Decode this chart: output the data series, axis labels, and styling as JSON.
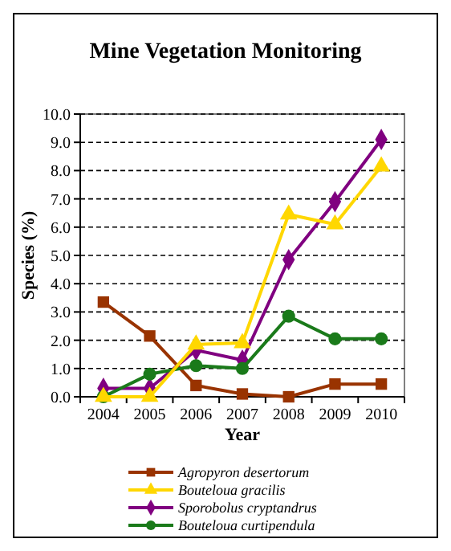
{
  "chart_data": {
    "type": "line",
    "title": "Mine Vegetation Monitoring",
    "xlabel": "Year",
    "ylabel": "Species (%)",
    "categories": [
      "2004",
      "2005",
      "2006",
      "2007",
      "2008",
      "2009",
      "2010"
    ],
    "series": [
      {
        "name": "Agropyron desertorum",
        "color": "#993300",
        "marker": "square",
        "values": [
          3.35,
          2.15,
          0.4,
          0.1,
          0.0,
          0.45,
          0.45
        ]
      },
      {
        "name": "Bouteloua gracilis",
        "color": "#ffd700",
        "marker": "triangle",
        "values": [
          0.0,
          0.0,
          1.85,
          1.9,
          6.45,
          6.1,
          8.15
        ]
      },
      {
        "name": "Sporobolus cryptandrus",
        "color": "#800080",
        "marker": "diamond",
        "values": [
          0.3,
          0.3,
          1.65,
          1.3,
          4.85,
          6.9,
          9.1
        ]
      },
      {
        "name": "Bouteloua curtipendula",
        "color": "#1a7a1a",
        "marker": "circle",
        "values": [
          0.0,
          0.8,
          1.1,
          1.0,
          2.85,
          2.05,
          2.05
        ]
      }
    ],
    "ylim": [
      0,
      10
    ],
    "yticks": [
      {
        "value": 0,
        "label": "0.0"
      },
      {
        "value": 1,
        "label": "1.0"
      },
      {
        "value": 2,
        "label": "2.0"
      },
      {
        "value": 3,
        "label": "3.0"
      },
      {
        "value": 4,
        "label": "4.0"
      },
      {
        "value": 5,
        "label": "5.0"
      },
      {
        "value": 6,
        "label": "6.0"
      },
      {
        "value": 7,
        "label": "7.0"
      },
      {
        "value": 8,
        "label": "8.0"
      },
      {
        "value": 9,
        "label": "9.0"
      },
      {
        "value": 10,
        "label": "10.0"
      }
    ],
    "grid": "y",
    "legend": "bottom"
  }
}
